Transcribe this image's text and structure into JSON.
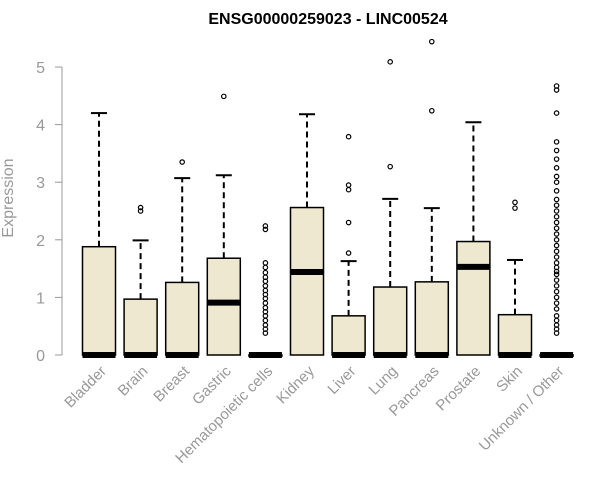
{
  "chart_data": {
    "type": "boxplot",
    "title": "ENSG00000259023 - LINC00524",
    "xlabel": "",
    "ylabel": "Expression",
    "ylim": [
      0,
      5.5
    ],
    "yticks": [
      0,
      1,
      2,
      3,
      4,
      5
    ],
    "categories": [
      "Bladder",
      "Brain",
      "Breast",
      "Gastric",
      "Hematopoietic cells",
      "Kidney",
      "Liver",
      "Lung",
      "Pancreas",
      "Prostate",
      "Skin",
      "Unknown / Other"
    ],
    "boxes": [
      {
        "category": "Bladder",
        "min": 0,
        "q1": 0,
        "median": 0,
        "q3": 1.88,
        "max": 4.2,
        "outliers": []
      },
      {
        "category": "Brain",
        "min": 0,
        "q1": 0,
        "median": 0,
        "q3": 0.97,
        "max": 1.99,
        "outliers": [
          2.5,
          2.56
        ]
      },
      {
        "category": "Breast",
        "min": 0,
        "q1": 0,
        "median": 0,
        "q3": 1.26,
        "max": 3.07,
        "outliers": [
          3.35
        ]
      },
      {
        "category": "Gastric",
        "min": 0,
        "q1": 0,
        "median": 0.91,
        "q3": 1.68,
        "max": 3.12,
        "outliers": [
          4.49
        ]
      },
      {
        "category": "Hematopoietic cells",
        "min": 0,
        "q1": 0,
        "median": 0,
        "q3": 0,
        "max": 0,
        "outliers": [
          0.38,
          0.45,
          0.52,
          0.6,
          0.68,
          0.75,
          0.82,
          0.9,
          0.98,
          1.05,
          1.12,
          1.2,
          1.28,
          1.35,
          1.43,
          1.52,
          1.6,
          2.18,
          2.24
        ]
      },
      {
        "category": "Kidney",
        "min": 0,
        "q1": 0,
        "median": 1.44,
        "q3": 2.56,
        "max": 4.18,
        "outliers": []
      },
      {
        "category": "Liver",
        "min": 0,
        "q1": 0,
        "median": 0,
        "q3": 0.68,
        "max": 1.63,
        "outliers": [
          1.77,
          2.3,
          2.87,
          2.95,
          3.79
        ]
      },
      {
        "category": "Lung",
        "min": 0,
        "q1": 0,
        "median": 0,
        "q3": 1.18,
        "max": 2.71,
        "outliers": [
          3.27,
          5.09
        ]
      },
      {
        "category": "Pancreas",
        "min": 0,
        "q1": 0,
        "median": 0,
        "q3": 1.27,
        "max": 2.55,
        "outliers": [
          4.24,
          5.44
        ]
      },
      {
        "category": "Prostate",
        "min": 0,
        "q1": 0,
        "median": 1.53,
        "q3": 1.97,
        "max": 4.04,
        "outliers": []
      },
      {
        "category": "Skin",
        "min": 0,
        "q1": 0,
        "median": 0,
        "q3": 0.7,
        "max": 1.65,
        "outliers": [
          2.55,
          2.65
        ]
      },
      {
        "category": "Unknown / Other",
        "min": 0,
        "q1": 0,
        "median": 0,
        "q3": 0,
        "max": 0,
        "outliers": [
          0.38,
          0.45,
          0.52,
          0.6,
          0.68,
          0.8,
          0.9,
          1.0,
          1.1,
          1.2,
          1.3,
          1.4,
          1.45,
          1.52,
          1.6,
          1.7,
          1.8,
          1.9,
          2.0,
          2.1,
          2.2,
          2.3,
          2.4,
          2.5,
          2.6,
          2.7,
          2.85,
          3.0,
          3.1,
          3.25,
          3.4,
          3.55,
          3.7,
          4.2,
          4.6,
          4.67
        ]
      }
    ],
    "box_fill": "#efe8d0",
    "box_stroke": "#000000",
    "axis_color": "#999999",
    "grid": false,
    "legend": "none"
  }
}
